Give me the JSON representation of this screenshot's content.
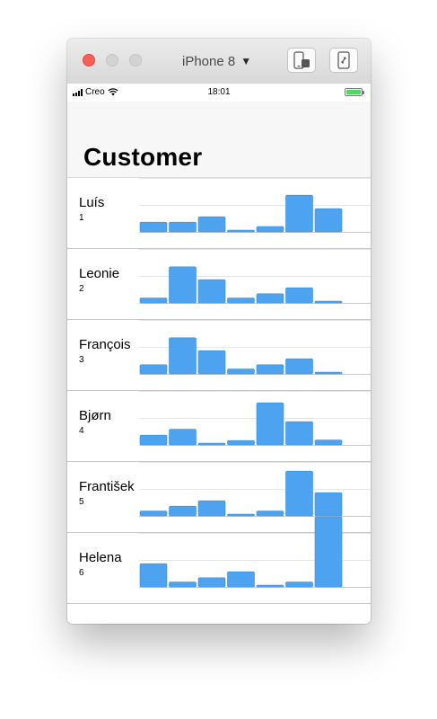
{
  "simulator": {
    "device_name": "iPhone 8",
    "home_icon": "phone-home-icon",
    "rotate_icon": "rotate-icon"
  },
  "statusbar": {
    "carrier": "Creo",
    "time": "18:01"
  },
  "nav": {
    "title": "Customer"
  },
  "chart_style": {
    "bar_color": "#4da3f0",
    "bar_stroke": "#3b8fd8",
    "grid_color": "#e6e6e6",
    "baseline_color": "#c8c7cc"
  },
  "customers": [
    {
      "name": "Luís",
      "number": "1",
      "values": [
        0.18,
        0.18,
        0.28,
        0.03,
        0.1,
        0.68,
        0.43
      ]
    },
    {
      "name": "Leonie",
      "number": "2",
      "values": [
        0.09,
        0.67,
        0.43,
        0.09,
        0.17,
        0.28,
        0.03
      ]
    },
    {
      "name": "François",
      "number": "3",
      "values": [
        0.17,
        0.67,
        0.43,
        0.09,
        0.17,
        0.28,
        0.03
      ]
    },
    {
      "name": "Bjørn",
      "number": "4",
      "values": [
        0.18,
        0.29,
        0.03,
        0.08,
        0.78,
        0.43,
        0.09
      ]
    },
    {
      "name": "František",
      "number": "5",
      "values": [
        0.09,
        0.18,
        0.28,
        0.03,
        0.09,
        0.83,
        0.43
      ]
    },
    {
      "name": "Helena",
      "number": "6",
      "values": [
        0.43,
        0.09,
        0.17,
        0.28,
        0.03,
        0.09,
        1.3
      ]
    }
  ]
}
